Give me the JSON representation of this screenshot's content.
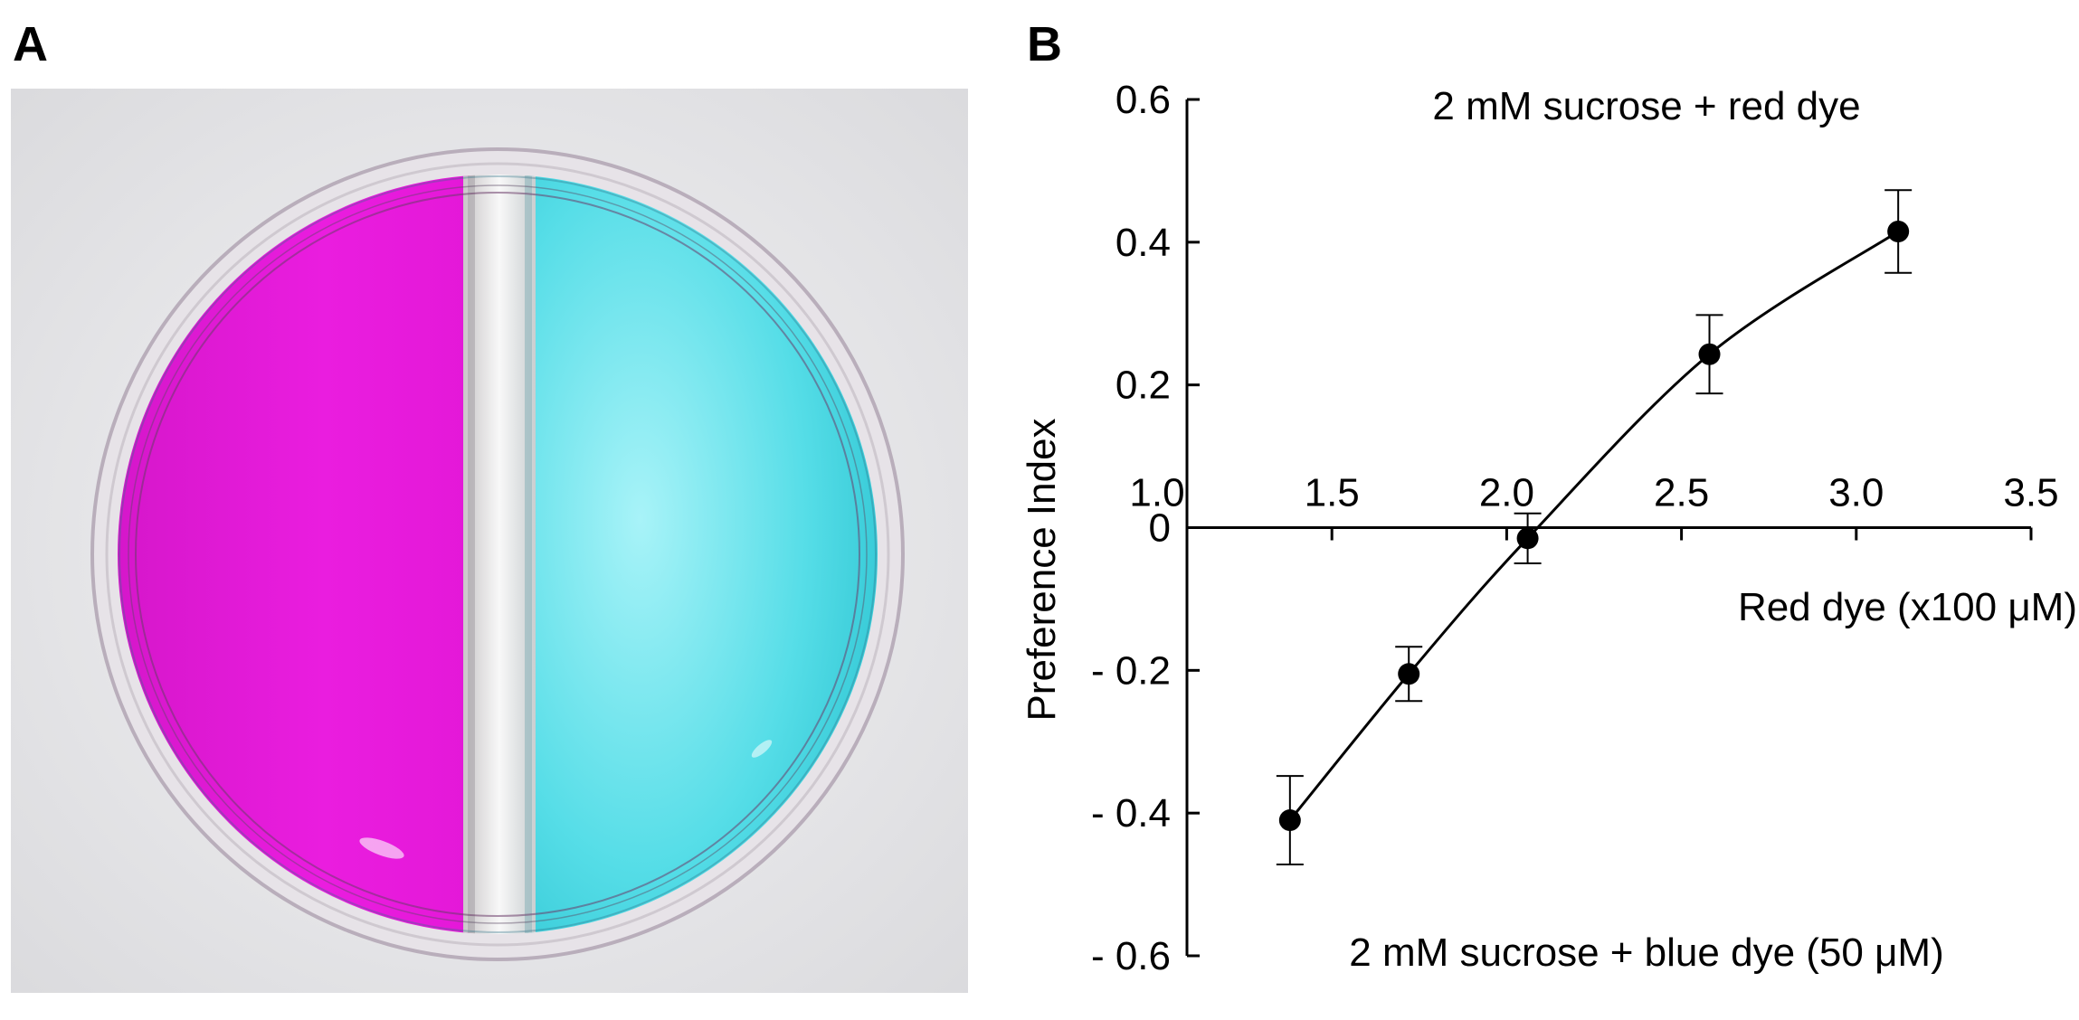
{
  "panels": {
    "a_label": "A",
    "b_label": "B"
  },
  "colors": {
    "red_dye": "#e21ad6",
    "blue_dye": "#35d8e2",
    "background": "#eeeeee"
  },
  "chart_data": {
    "type": "line",
    "xlabel": "Red dye (x100 μM)",
    "ylabel": "Preference Index",
    "annotations": {
      "top": "2 mM sucrose + red dye",
      "bottom": "2 mM sucrose + blue dye (50 μM)"
    },
    "xlim": [
      1.0,
      3.5
    ],
    "ylim": [
      -0.6,
      0.6
    ],
    "x_ticks": [
      {
        "value": 1.0,
        "label": "1.0"
      },
      {
        "value": 1.5,
        "label": "1.5"
      },
      {
        "value": 2.0,
        "label": "2.0"
      },
      {
        "value": 2.5,
        "label": "2.5"
      },
      {
        "value": 3.0,
        "label": "3.0"
      },
      {
        "value": 3.5,
        "label": "3.5"
      }
    ],
    "y_ticks": [
      {
        "value": 0.6,
        "label": "0.6"
      },
      {
        "value": 0.4,
        "label": "0.4"
      },
      {
        "value": 0.2,
        "label": "0.2"
      },
      {
        "value": 0,
        "label": "0"
      },
      {
        "value": -0.2,
        "label": "- 0.2"
      },
      {
        "value": -0.4,
        "label": "- 0.4"
      },
      {
        "value": -0.6,
        "label": "- 0.6"
      }
    ],
    "series": [
      {
        "points": [
          {
            "x": 1.38,
            "y": -0.41,
            "err": 0.062
          },
          {
            "x": 1.72,
            "y": -0.205,
            "err": 0.038
          },
          {
            "x": 2.06,
            "y": -0.015,
            "err": 0.035
          },
          {
            "x": 2.58,
            "y": 0.243,
            "err": 0.055
          },
          {
            "x": 3.12,
            "y": 0.415,
            "err": 0.058
          }
        ]
      }
    ],
    "grid": false,
    "legend": "none"
  }
}
